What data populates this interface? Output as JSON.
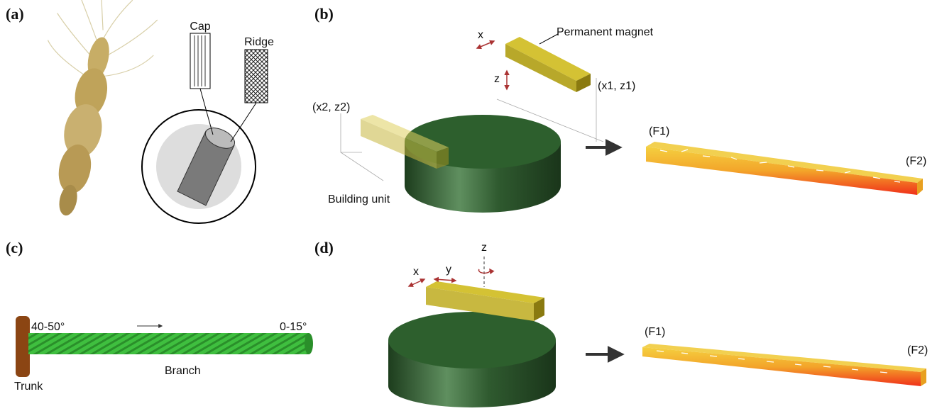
{
  "panels": {
    "a": {
      "label": "(a)",
      "cap": "Cap",
      "ridge": "Ridge"
    },
    "b": {
      "label": "(b)",
      "magnet": "Permanent magnet",
      "x": "x",
      "z": "z",
      "pos1": "(x1, z1)",
      "pos2": "(x2, z2)",
      "unit": "Building unit",
      "f1": "(F1)",
      "f2": "(F2)"
    },
    "c": {
      "label": "(c)",
      "angle_start": "40-50°",
      "angle_end": "0-15°",
      "trunk": "Trunk",
      "branch": "Branch"
    },
    "d": {
      "label": "(d)",
      "x": "x",
      "y": "y",
      "z": "z",
      "f1": "(F1)",
      "f2": "(F2)"
    }
  }
}
